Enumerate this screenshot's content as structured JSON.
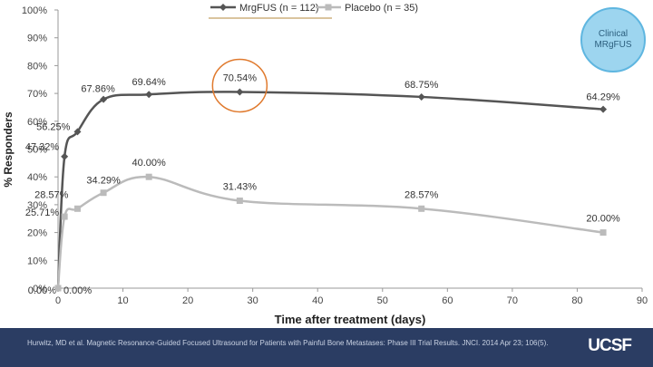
{
  "chart_data": {
    "type": "line",
    "xlabel": "Time after treatment (days)",
    "ylabel": "% Responders",
    "xlim": [
      0,
      90
    ],
    "ylim": [
      0,
      100
    ],
    "xticks": [
      "0",
      "10",
      "20",
      "30",
      "40",
      "50",
      "60",
      "70",
      "80",
      "90"
    ],
    "yticks": [
      "0%",
      "10%",
      "20%",
      "30%",
      "40%",
      "50%",
      "60%",
      "70%",
      "80%",
      "90%",
      "100%"
    ],
    "legend_position": "top",
    "series": [
      {
        "name": "MrgFUS (n = 112)",
        "color": "#555555",
        "marker": "diamond",
        "points": [
          {
            "x": 0,
            "y": 0.0,
            "label": "0.00%"
          },
          {
            "x": 1,
            "y": 47.32,
            "label": "47.32%"
          },
          {
            "x": 3,
            "y": 56.25,
            "label": "56.25%"
          },
          {
            "x": 7,
            "y": 67.86,
            "label": "67.86%"
          },
          {
            "x": 14,
            "y": 69.64,
            "label": "69.64%"
          },
          {
            "x": 28,
            "y": 70.54,
            "label": "70.54%"
          },
          {
            "x": 56,
            "y": 68.75,
            "label": "68.75%"
          },
          {
            "x": 84,
            "y": 64.29,
            "label": "64.29%"
          }
        ]
      },
      {
        "name": "Placebo (n = 35)",
        "color": "#bbbbbb",
        "marker": "square",
        "points": [
          {
            "x": 0,
            "y": 0.0,
            "label": "0.00%"
          },
          {
            "x": 1,
            "y": 25.71,
            "label": "25.71%"
          },
          {
            "x": 3,
            "y": 28.57,
            "label": "28.57%"
          },
          {
            "x": 7,
            "y": 34.29,
            "label": "34.29%"
          },
          {
            "x": 14,
            "y": 40.0,
            "label": "40.00%"
          },
          {
            "x": 28,
            "y": 31.43,
            "label": "31.43%"
          },
          {
            "x": 56,
            "y": 28.57,
            "label": "28.57%"
          },
          {
            "x": 84,
            "y": 20.0,
            "label": "20.00%"
          }
        ]
      }
    ],
    "highlight": {
      "series": 0,
      "point": 5,
      "color": "#e07a2e"
    }
  },
  "badge": {
    "line1": "Clinical",
    "line2": "MRgFUS"
  },
  "footer": {
    "citation": "Hurwitz, MD et al. Magnetic Resonance-Guided Focused Ultrasound for Patients with Painful Bone Metastases: Phase III Trial Results. JNCI. 2014 Apr 23; 106(5).",
    "logo": "UCSF"
  },
  "colors": {
    "footer_bg": "#2b3d63",
    "badge_fill": "#9dd5ef",
    "axis": "#999999"
  }
}
